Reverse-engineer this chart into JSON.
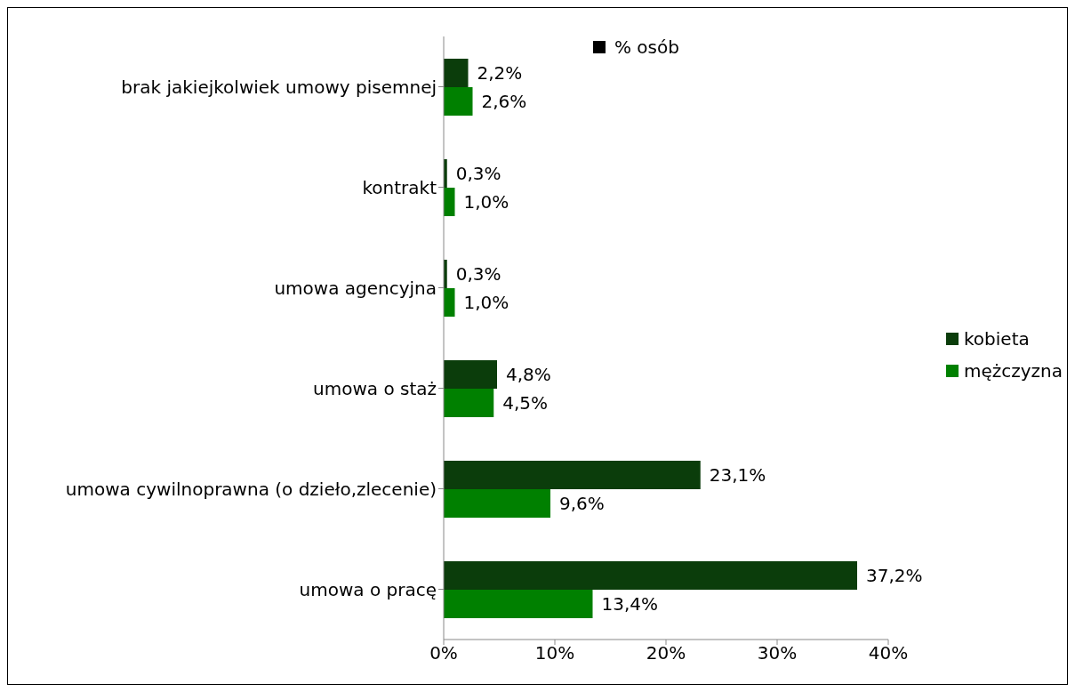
{
  "chart_data": {
    "type": "bar",
    "orientation": "horizontal",
    "legend_title": "% osób",
    "categories": [
      "brak jakiejkolwiek umowy pisemnej",
      "kontrakt",
      "umowa agencyjna",
      "umowa o staż",
      "umowa cywilnoprawna (o dzieło,zlecenie)",
      "umowa o pracę"
    ],
    "series": [
      {
        "name": "kobieta",
        "color": "#0b3d0b",
        "values": [
          2.2,
          0.3,
          0.3,
          4.8,
          23.1,
          37.2
        ],
        "value_labels": [
          "2,2%",
          "0,3%",
          "0,3%",
          "4,8%",
          "23,1%",
          "37,2%"
        ]
      },
      {
        "name": "mężczyzna",
        "color": "#008000",
        "values": [
          2.6,
          1.0,
          1.0,
          4.5,
          9.6,
          13.4
        ],
        "value_labels": [
          "2,6%",
          "1,0%",
          "1,0%",
          "4,5%",
          "9,6%",
          "13,4%"
        ]
      }
    ],
    "xlim": [
      0,
      40
    ],
    "xticks": [
      {
        "value": 0,
        "label": "0%"
      },
      {
        "value": 10,
        "label": "10%"
      },
      {
        "value": 20,
        "label": "20%"
      },
      {
        "value": 30,
        "label": "30%"
      },
      {
        "value": 40,
        "label": "40%"
      }
    ],
    "grid": false,
    "legend": "right"
  }
}
